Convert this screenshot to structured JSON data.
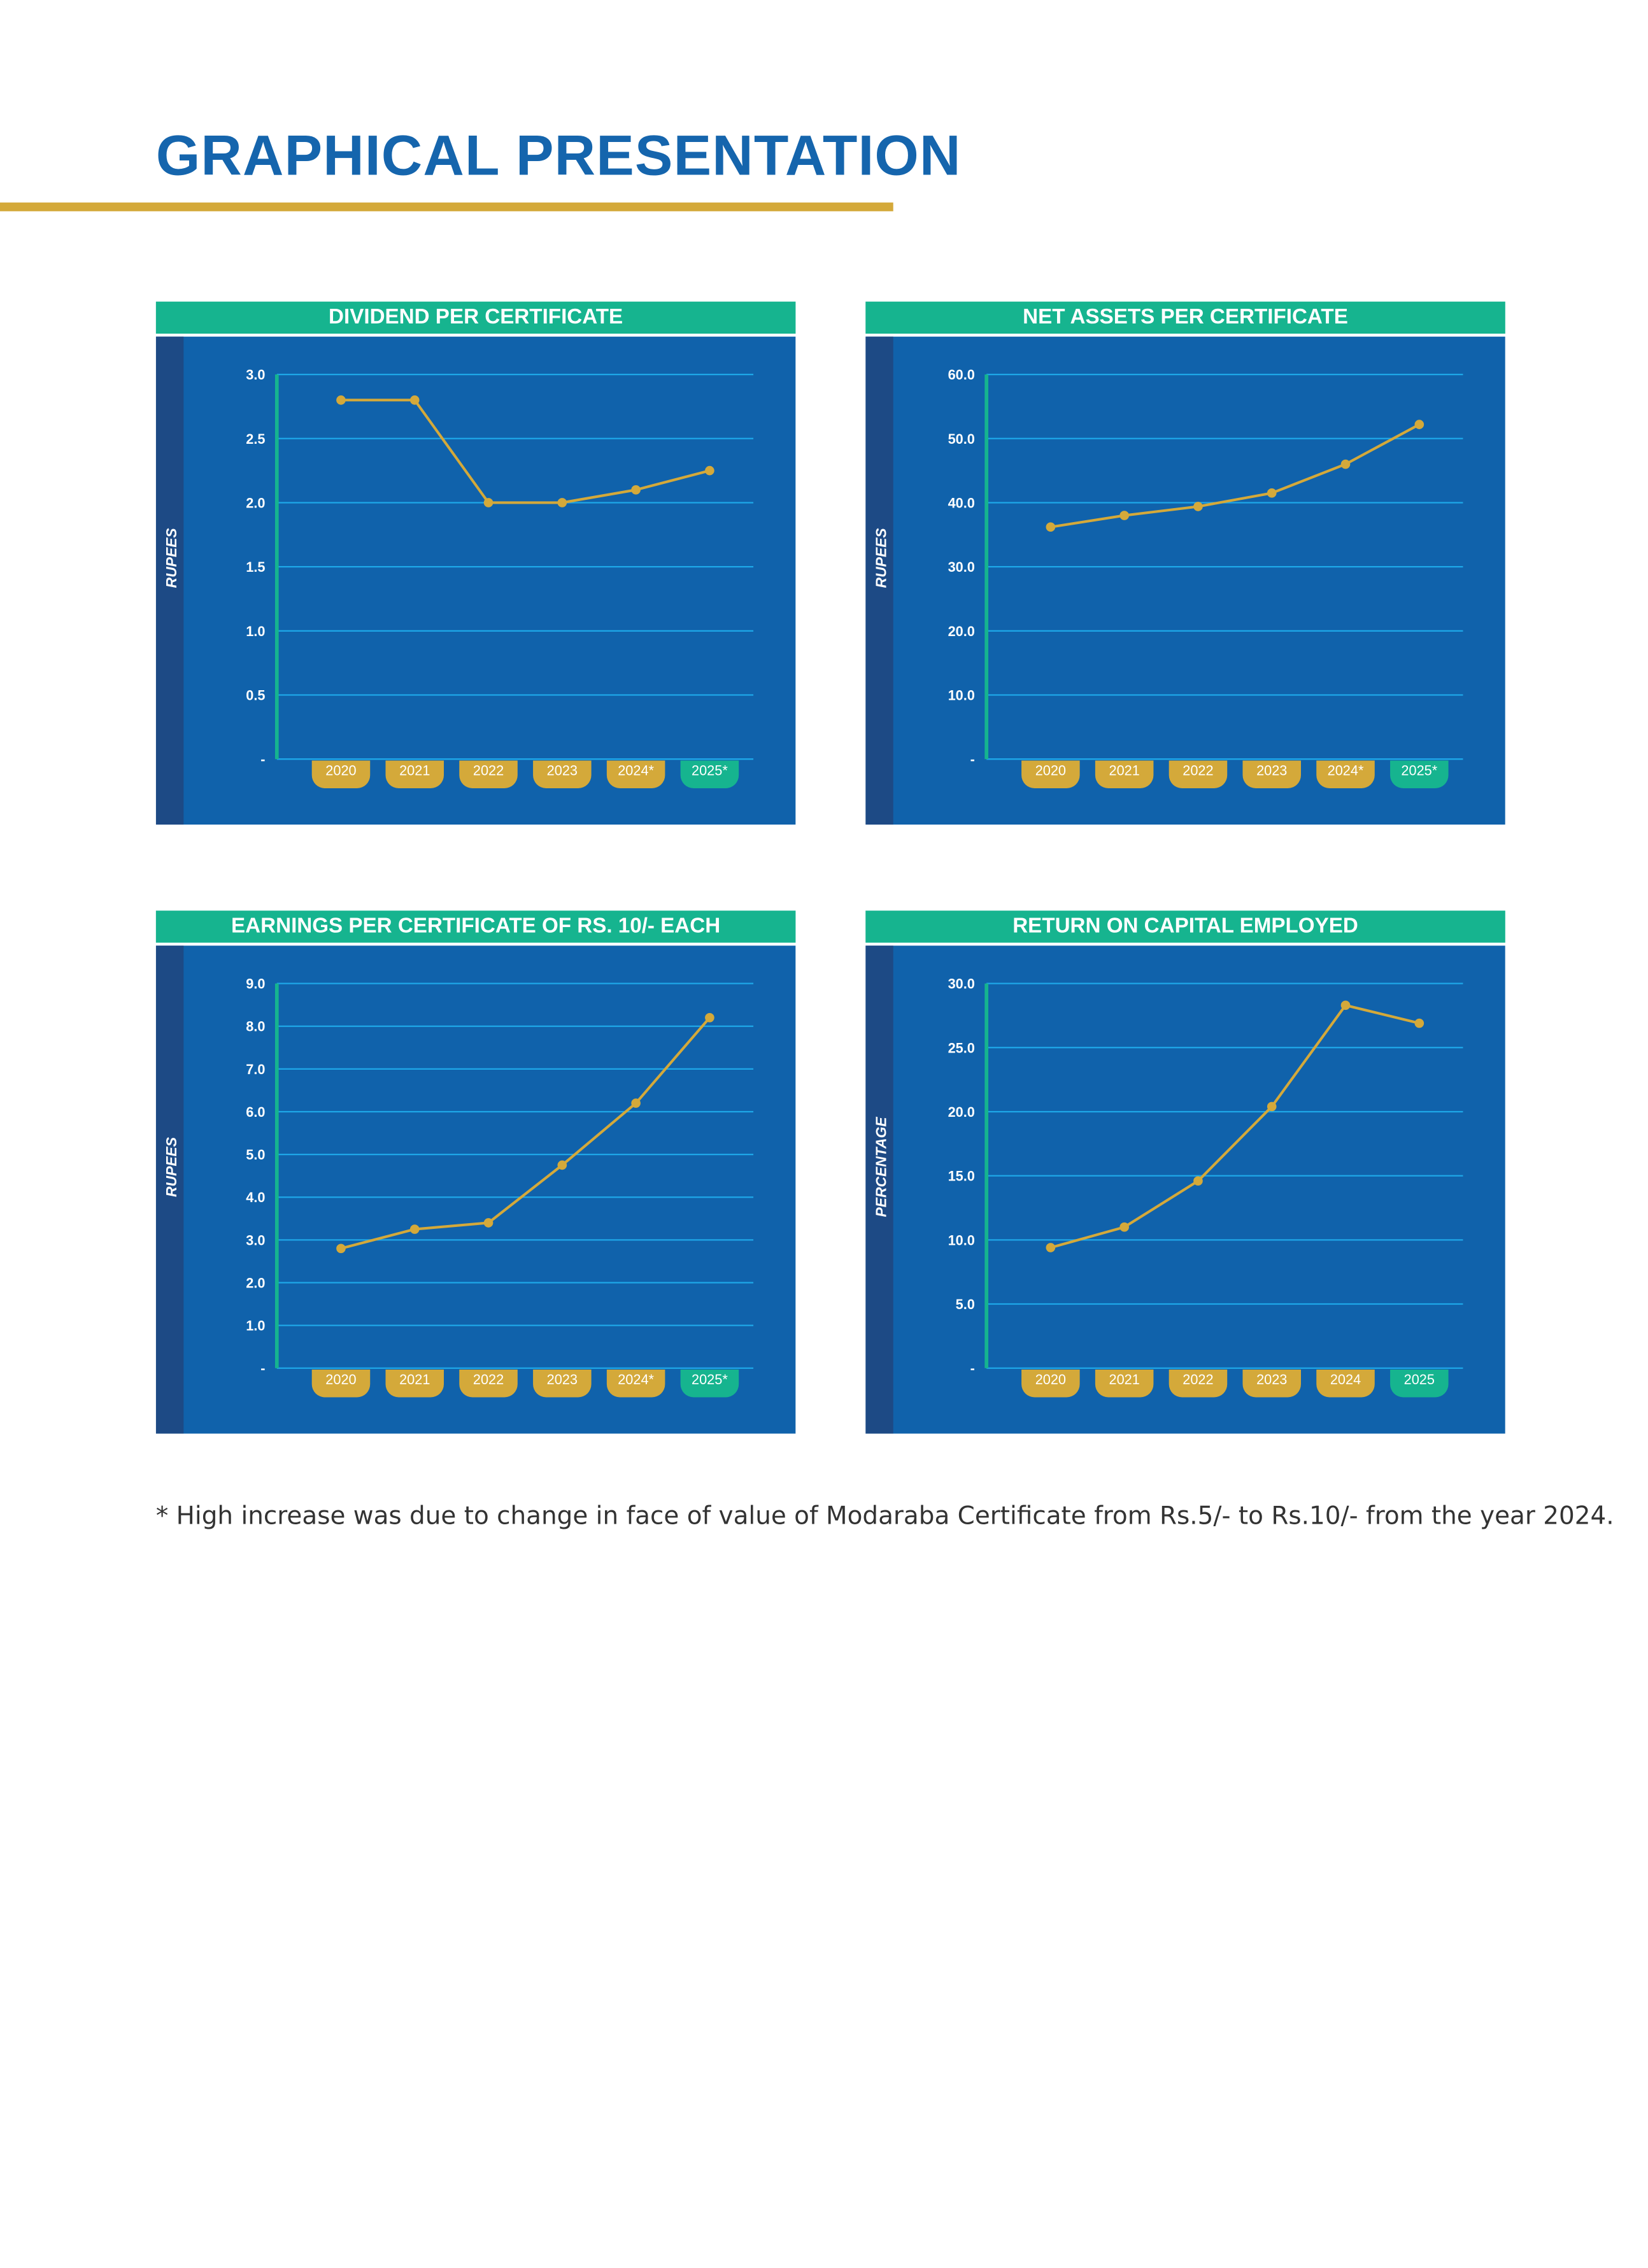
{
  "title": "GRAPHICAL PRESENTATION",
  "colors": {
    "title": "#1565ad",
    "accent_bar": "#d4a93a",
    "header": "#16b48f",
    "panel": "#1062ab",
    "strip": "#1d4a85",
    "grid": "#1ea7e8",
    "axis": "#16b48f",
    "line": "#d4a93a",
    "pill": "#d4a93a",
    "pill_highlight": "#16b48f"
  },
  "footnote": "* High increase was due to change in face of value of Modaraba Certificate from Rs.5/- to Rs.10/- from the year 2024.",
  "chart_data": [
    {
      "type": "line",
      "title": "DIVIDEND PER CERTIFICATE",
      "ylabel": "RUPEES",
      "categories": [
        "2020",
        "2021",
        "2022",
        "2023",
        "2024*",
        "2025*"
      ],
      "values": [
        2.8,
        2.8,
        2.0,
        2.0,
        2.1,
        2.25
      ],
      "ylim": [
        0,
        3.0
      ],
      "yticks": [
        "-",
        "0.5",
        "1.0",
        "1.5",
        "2.0",
        "2.5",
        "3.0"
      ],
      "grid": true
    },
    {
      "type": "line",
      "title": "NET ASSETS PER CERTIFICATE",
      "ylabel": "RUPEES",
      "categories": [
        "2020",
        "2021",
        "2022",
        "2023",
        "2024*",
        "2025*"
      ],
      "values": [
        36.2,
        38.0,
        39.4,
        41.5,
        46.0,
        52.2
      ],
      "ylim": [
        0,
        60
      ],
      "yticks": [
        "-",
        "10.0",
        "20.0",
        "30.0",
        "40.0",
        "50.0",
        "60.0"
      ],
      "grid": true
    },
    {
      "type": "line",
      "title": "EARNINGS PER CERTIFICATE OF RS. 10/- EACH",
      "ylabel": "RUPEES",
      "categories": [
        "2020",
        "2021",
        "2022",
        "2023",
        "2024*",
        "2025*"
      ],
      "values": [
        2.8,
        3.25,
        3.4,
        4.75,
        6.2,
        8.2
      ],
      "ylim": [
        0,
        9.0
      ],
      "yticks": [
        "-",
        "1.0",
        "2.0",
        "3.0",
        "4.0",
        "5.0",
        "6.0",
        "7.0",
        "8.0",
        "9.0"
      ],
      "grid": true
    },
    {
      "type": "line",
      "title": "RETURN ON CAPITAL EMPLOYED",
      "ylabel": "PERCENTAGE",
      "categories": [
        "2020",
        "2021",
        "2022",
        "2023",
        "2024",
        "2025"
      ],
      "values": [
        9.4,
        11.0,
        14.6,
        20.4,
        28.3,
        26.9
      ],
      "ylim": [
        0,
        30
      ],
      "yticks": [
        "-",
        "5.0",
        "10.0",
        "15.0",
        "20.0",
        "25.0",
        "30.0"
      ],
      "grid": true
    }
  ]
}
